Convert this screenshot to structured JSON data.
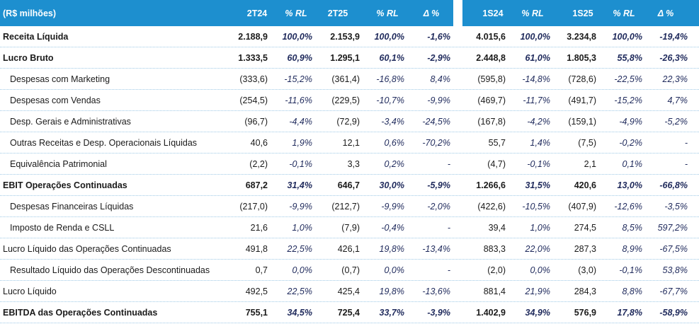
{
  "header": {
    "label": "(R$ milhões)",
    "columns": [
      "2T24",
      "% RL",
      "2T25",
      "% RL",
      "Δ %",
      "1S24",
      "% RL",
      "1S25",
      "% RL",
      "Δ %"
    ]
  },
  "rows": [
    {
      "label": "Receita Líquida",
      "bold": true,
      "indent": false,
      "values": [
        "2.188,9",
        "100,0%",
        "2.153,9",
        "100,0%",
        "-1,6%",
        "4.015,6",
        "100,0%",
        "3.234,8",
        "100,0%",
        "-19,4%"
      ]
    },
    {
      "label": "Lucro Bruto",
      "bold": true,
      "indent": false,
      "values": [
        "1.333,5",
        "60,9%",
        "1.295,1",
        "60,1%",
        "-2,9%",
        "2.448,8",
        "61,0%",
        "1.805,3",
        "55,8%",
        "-26,3%"
      ]
    },
    {
      "label": "Despesas com Marketing",
      "bold": false,
      "indent": true,
      "values": [
        "(333,6)",
        "-15,2%",
        "(361,4)",
        "-16,8%",
        "8,4%",
        "(595,8)",
        "-14,8%",
        "(728,6)",
        "-22,5%",
        "22,3%"
      ]
    },
    {
      "label": "Despesas com Vendas",
      "bold": false,
      "indent": true,
      "values": [
        "(254,5)",
        "-11,6%",
        "(229,5)",
        "-10,7%",
        "-9,9%",
        "(469,7)",
        "-11,7%",
        "(491,7)",
        "-15,2%",
        "4,7%"
      ]
    },
    {
      "label": "Desp. Gerais e Administrativas",
      "bold": false,
      "indent": true,
      "values": [
        "(96,7)",
        "-4,4%",
        "(72,9)",
        "-3,4%",
        "-24,5%",
        "(167,8)",
        "-4,2%",
        "(159,1)",
        "-4,9%",
        "-5,2%"
      ]
    },
    {
      "label": "Outras Receitas e Desp. Operacionais Líquidas",
      "bold": false,
      "indent": true,
      "values": [
        "40,6",
        "1,9%",
        "12,1",
        "0,6%",
        "-70,2%",
        "55,7",
        "1,4%",
        "(7,5)",
        "-0,2%",
        "-"
      ]
    },
    {
      "label": "Equivalência Patrimonial",
      "bold": false,
      "indent": true,
      "values": [
        "(2,2)",
        "-0,1%",
        "3,3",
        "0,2%",
        "-",
        "(4,7)",
        "-0,1%",
        "2,1",
        "0,1%",
        "-"
      ]
    },
    {
      "label": "EBIT Operações Continuadas",
      "bold": true,
      "indent": false,
      "values": [
        "687,2",
        "31,4%",
        "646,7",
        "30,0%",
        "-5,9%",
        "1.266,6",
        "31,5%",
        "420,6",
        "13,0%",
        "-66,8%"
      ]
    },
    {
      "label": "Despesas Financeiras Líquidas",
      "bold": false,
      "indent": true,
      "values": [
        "(217,0)",
        "-9,9%",
        "(212,7)",
        "-9,9%",
        "-2,0%",
        "(422,6)",
        "-10,5%",
        "(407,9)",
        "-12,6%",
        "-3,5%"
      ]
    },
    {
      "label": "Imposto de Renda e CSLL",
      "bold": false,
      "indent": true,
      "values": [
        "21,6",
        "1,0%",
        "(7,9)",
        "-0,4%",
        "-",
        "39,4",
        "1,0%",
        "274,5",
        "8,5%",
        "597,2%"
      ]
    },
    {
      "label": "Lucro Líquido das Operações Continuadas",
      "bold": false,
      "indent": false,
      "values": [
        "491,8",
        "22,5%",
        "426,1",
        "19,8%",
        "-13,4%",
        "883,3",
        "22,0%",
        "287,3",
        "8,9%",
        "-67,5%"
      ]
    },
    {
      "label": "Resultado Líquido das Operações Descontinuadas",
      "bold": false,
      "indent": true,
      "values": [
        "0,7",
        "0,0%",
        "(0,7)",
        "0,0%",
        "-",
        "(2,0)",
        "0,0%",
        "(3,0)",
        "-0,1%",
        "53,8%"
      ]
    },
    {
      "label": "Lucro Líquido",
      "bold": false,
      "indent": false,
      "values": [
        "492,5",
        "22,5%",
        "425,4",
        "19,8%",
        "-13,6%",
        "881,4",
        "21,9%",
        "284,3",
        "8,8%",
        "-67,7%"
      ]
    },
    {
      "label": "EBITDA das Operações Continuadas",
      "bold": true,
      "indent": false,
      "values": [
        "755,1",
        "34,5%",
        "725,4",
        "33,7%",
        "-3,9%",
        "1.402,9",
        "34,9%",
        "576,9",
        "17,8%",
        "-58,9%"
      ]
    }
  ]
}
